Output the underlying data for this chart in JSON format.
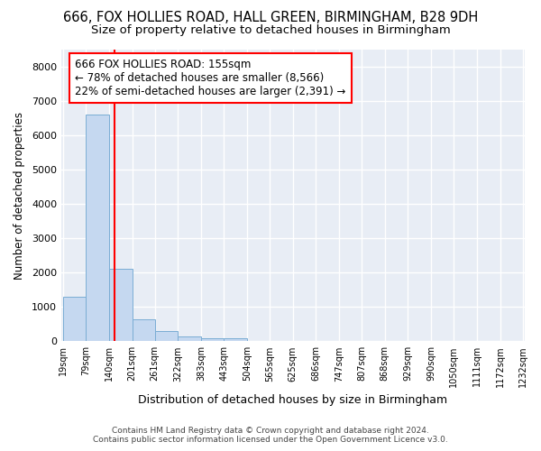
{
  "title1": "666, FOX HOLLIES ROAD, HALL GREEN, BIRMINGHAM, B28 9DH",
  "title2": "Size of property relative to detached houses in Birmingham",
  "xlabel": "Distribution of detached houses by size in Birmingham",
  "ylabel": "Number of detached properties",
  "bar_edges": [
    19,
    79,
    140,
    201,
    261,
    322,
    383,
    443,
    504,
    565,
    625,
    686,
    747,
    807,
    868,
    929,
    990,
    1050,
    1111,
    1172,
    1232
  ],
  "bar_heights": [
    1300,
    6600,
    2100,
    650,
    300,
    150,
    90,
    90,
    0,
    0,
    0,
    0,
    0,
    0,
    0,
    0,
    0,
    0,
    0,
    0
  ],
  "bar_color": "#c5d8f0",
  "bar_edge_color": "#7aadd4",
  "red_line_x": 155,
  "annotation_text": "666 FOX HOLLIES ROAD: 155sqm\n← 78% of detached houses are smaller (8,566)\n22% of semi-detached houses are larger (2,391) →",
  "annotation_box_color": "white",
  "annotation_box_edge_color": "red",
  "ylim": [
    0,
    8500
  ],
  "yticks": [
    0,
    1000,
    2000,
    3000,
    4000,
    5000,
    6000,
    7000,
    8000
  ],
  "background_color": "#ffffff",
  "plot_bg_color": "#e8edf5",
  "grid_color": "#ffffff",
  "title1_fontsize": 10.5,
  "title2_fontsize": 9.5,
  "annot_fontsize": 8.5,
  "footer1": "Contains HM Land Registry data © Crown copyright and database right 2024.",
  "footer2": "Contains public sector information licensed under the Open Government Licence v3.0."
}
